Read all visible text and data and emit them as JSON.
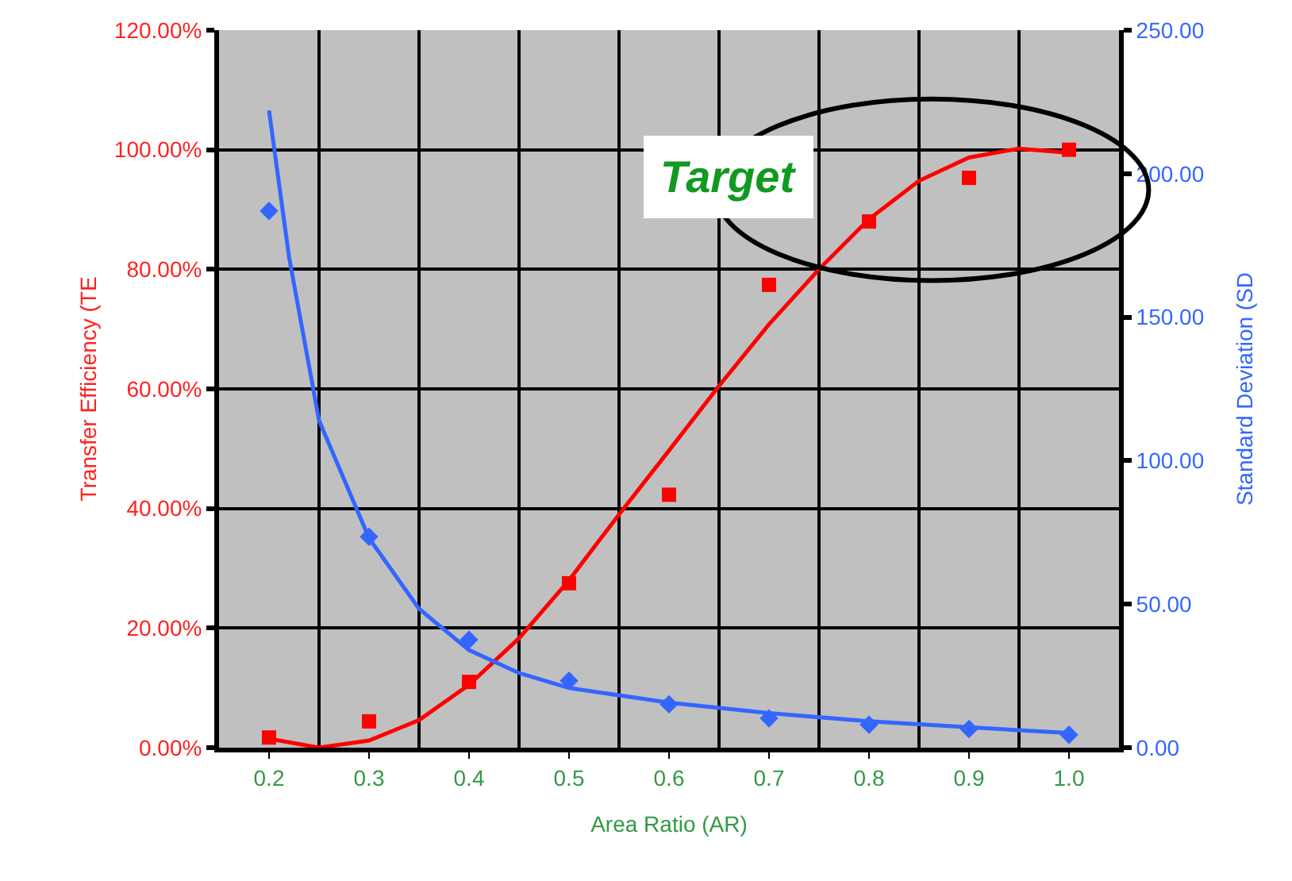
{
  "chart_data": {
    "type": "scatter",
    "xlabel": "Area Ratio (AR)",
    "ylabel": "Transfer Efficiency (TE",
    "y2label": "Standard Deviation (SD",
    "annotations": [
      "Target"
    ],
    "xlim": [
      0.15,
      1.05
    ],
    "xticks": [
      0.2,
      0.3,
      0.4,
      0.5,
      0.6,
      0.7,
      0.8,
      0.9,
      {
        "value": 1.0,
        "label": "1.0"
      }
    ],
    "ylim": [
      0,
      120
    ],
    "yticks": [
      {
        "value": 0,
        "label": "0.00%"
      },
      {
        "value": 20,
        "label": "20.00%"
      },
      {
        "value": 40,
        "label": "40.00%"
      },
      {
        "value": 60,
        "label": "60.00%"
      },
      {
        "value": 80,
        "label": "80.00%"
      },
      {
        "value": 100,
        "label": "100.00%"
      },
      {
        "value": 120,
        "label": "120.00%"
      }
    ],
    "y2lim": [
      0,
      250
    ],
    "y2ticks": [
      {
        "value": 0,
        "label": "0.00"
      },
      {
        "value": 50,
        "label": "50.00"
      },
      {
        "value": 100,
        "label": "100.00"
      },
      {
        "value": 150,
        "label": "150.00"
      },
      {
        "value": 200,
        "label": "200.00"
      },
      {
        "value": 250,
        "label": "250.00"
      }
    ],
    "grid": true,
    "series": [
      {
        "type": "scatter",
        "color": "#ff0000",
        "marker": "square",
        "x": [
          0.2,
          0.3,
          0.4,
          0.5,
          0.6,
          0.7,
          0.8,
          0.9,
          1.0
        ],
        "values": [
          1.7,
          4.4,
          11,
          27.5,
          42.3,
          77.4,
          88,
          95.3,
          100
        ]
      },
      {
        "type": "line",
        "color": "#ff0000",
        "marker": "none",
        "x": [
          0.2,
          0.25,
          0.3,
          0.35,
          0.4,
          0.45,
          0.5,
          0.55,
          0.6,
          0.65,
          0.7,
          0.75,
          0.8,
          0.85,
          0.9,
          0.95,
          1.0
        ],
        "values": [
          1.5,
          0,
          1.2,
          4.6,
          10.5,
          18.3,
          28,
          39,
          49.7,
          60.5,
          70.8,
          80,
          88.4,
          94.8,
          98.7,
          100.2,
          99.5
        ]
      },
      {
        "type": "scatter",
        "color": "#3366ff",
        "marker": "diamond",
        "axis": "y2",
        "x": [
          0.2,
          0.3,
          0.4,
          0.5,
          0.6,
          0.7,
          0.8,
          0.9,
          1.0
        ],
        "values": [
          187,
          73.5,
          37.6,
          23.3,
          15.1,
          10.2,
          8,
          6.5,
          4.5
        ]
      },
      {
        "type": "line",
        "color": "#3366ff",
        "marker": "none",
        "axis": "y2",
        "x": [
          0.2,
          0.22,
          0.25,
          0.3,
          0.35,
          0.4,
          0.45,
          0.5,
          0.6,
          0.7,
          0.8,
          0.9,
          1.0
        ],
        "values": [
          222,
          171,
          114,
          73,
          48.4,
          34,
          26,
          20.8,
          15.7,
          12,
          9.2,
          7.1,
          5.1
        ]
      }
    ]
  }
}
